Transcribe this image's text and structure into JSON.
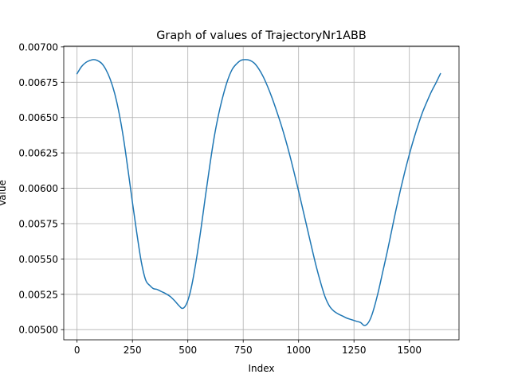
{
  "chart_data": {
    "type": "line",
    "title": "Graph of values of TrajectoryNr1ABB",
    "xlabel": "Index",
    "ylabel": "Value",
    "xlim": [
      -60,
      1724
    ],
    "ylim": [
      0.004928,
      0.007005
    ],
    "xticks": [
      0,
      250,
      500,
      750,
      1000,
      1250,
      1500
    ],
    "xtick_labels": [
      "0",
      "250",
      "500",
      "750",
      "1000",
      "1250",
      "1500"
    ],
    "yticks": [
      0.005,
      0.00525,
      0.0055,
      0.00575,
      0.006,
      0.00625,
      0.0065,
      0.00675,
      0.007
    ],
    "ytick_labels": [
      "0.00500",
      "0.00525",
      "0.00550",
      "0.00575",
      "0.00600",
      "0.00625",
      "0.00650",
      "0.00675",
      "0.00700"
    ],
    "grid": true,
    "line_color": "#1f77b4",
    "series": [
      {
        "x": [
          0,
          20,
          40,
          60,
          75,
          90,
          110,
          130,
          150,
          170,
          190,
          210,
          230,
          250,
          270,
          290,
          310,
          330,
          345,
          360,
          380,
          400,
          420,
          440,
          460,
          475,
          490,
          505,
          520,
          540,
          560,
          580,
          600,
          620,
          640,
          660,
          680,
          700,
          720,
          740,
          760,
          780,
          800,
          820,
          840,
          860,
          880,
          900,
          920,
          940,
          960,
          980,
          1000,
          1020,
          1040,
          1060,
          1080,
          1100,
          1120,
          1140,
          1160,
          1180,
          1200,
          1220,
          1240,
          1260,
          1280,
          1295,
          1310,
          1325,
          1340,
          1360,
          1380,
          1400,
          1420,
          1440,
          1460,
          1480,
          1500,
          1520,
          1540,
          1560,
          1580,
          1600,
          1620,
          1640
        ],
        "y": [
          0.00681,
          0.00686,
          0.00689,
          0.006905,
          0.00691,
          0.006905,
          0.006885,
          0.00684,
          0.00677,
          0.00667,
          0.00653,
          0.00635,
          0.00613,
          0.0059,
          0.00568,
          0.00548,
          0.00535,
          0.00531,
          0.00529,
          0.005285,
          0.00527,
          0.005255,
          0.005235,
          0.005205,
          0.00517,
          0.00515,
          0.00517,
          0.00523,
          0.00533,
          0.00551,
          0.00572,
          0.00595,
          0.00617,
          0.00637,
          0.00653,
          0.00666,
          0.006765,
          0.00684,
          0.00688,
          0.006905,
          0.00691,
          0.006905,
          0.006885,
          0.006845,
          0.00679,
          0.00672,
          0.00664,
          0.00655,
          0.006455,
          0.00635,
          0.006235,
          0.00611,
          0.00598,
          0.005845,
          0.00571,
          0.005575,
          0.005445,
          0.00533,
          0.00523,
          0.005165,
          0.00513,
          0.00511,
          0.005095,
          0.00508,
          0.00507,
          0.00506,
          0.00505,
          0.00503,
          0.00504,
          0.00508,
          0.00515,
          0.00527,
          0.00541,
          0.00555,
          0.0057,
          0.00585,
          0.00599,
          0.00612,
          0.00624,
          0.00635,
          0.00645,
          0.00654,
          0.006615,
          0.006685,
          0.006745,
          0.00681
        ]
      }
    ]
  }
}
